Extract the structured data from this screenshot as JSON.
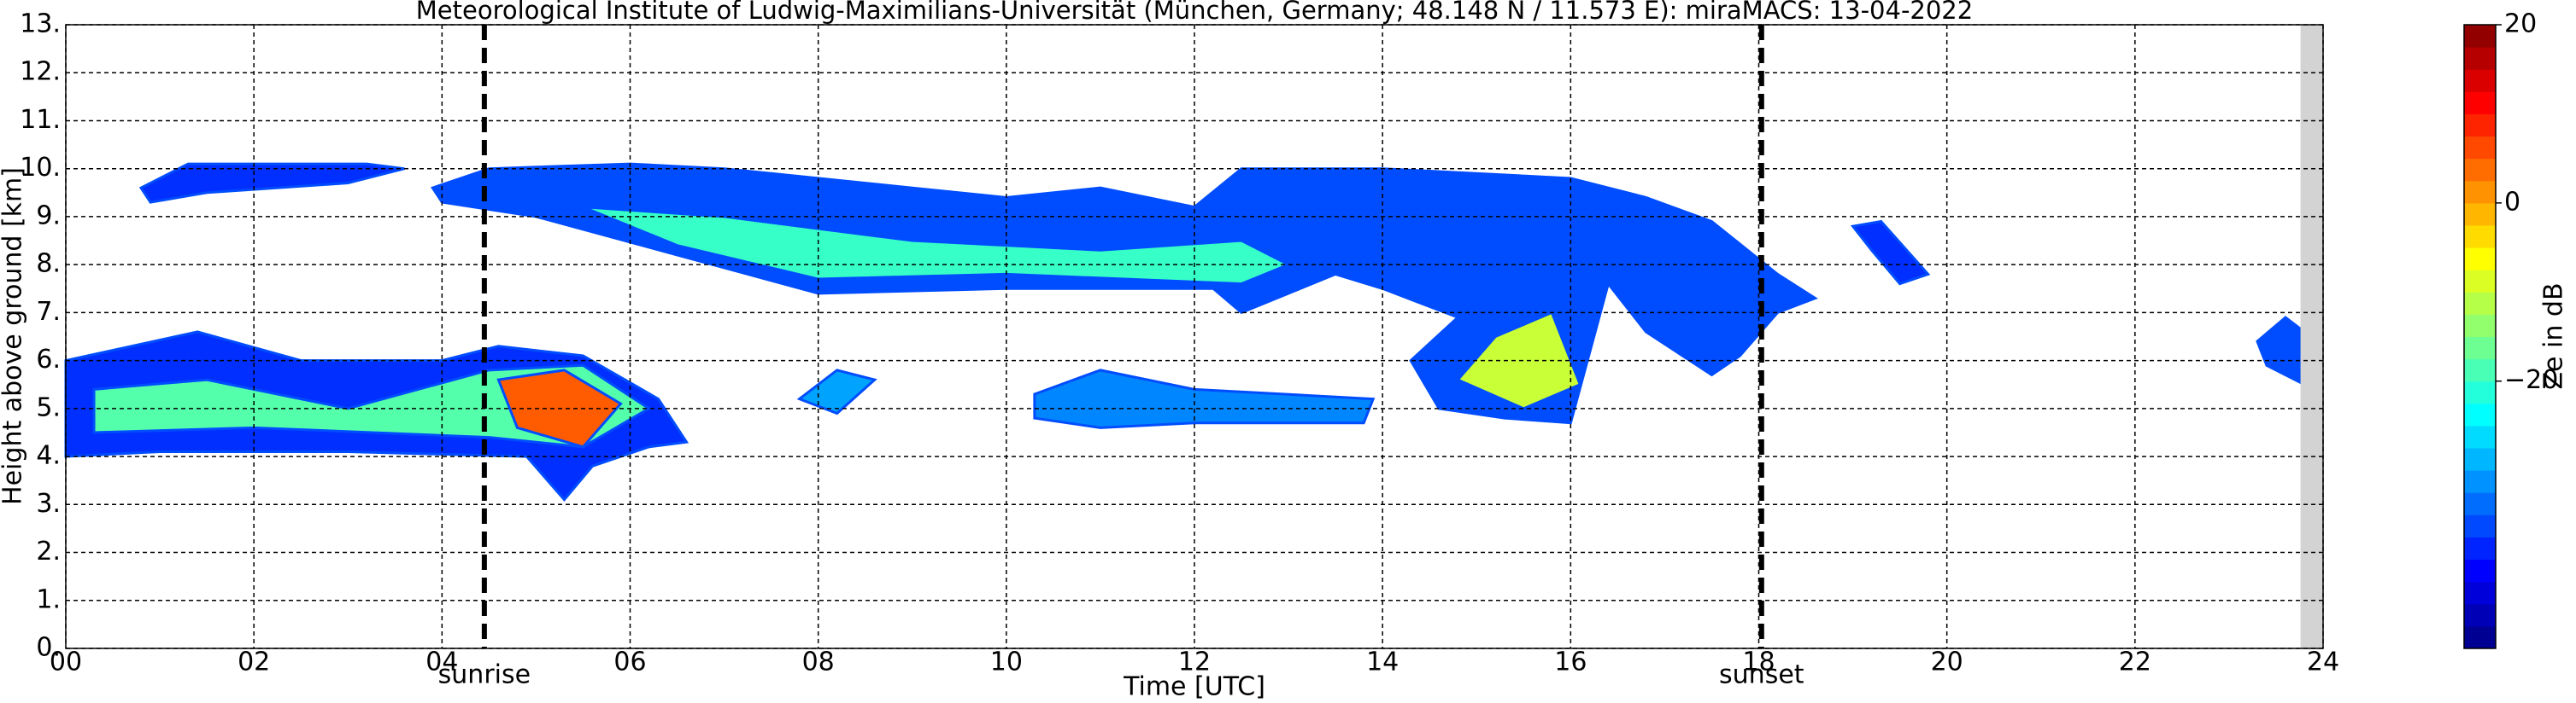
{
  "chart_data": {
    "type": "radar-cloud",
    "title": "Meteorological Institute of Ludwig-Maximilians-Universität (München, Germany; 48.148 N / 11.573 E):    miraMACS: 13-04-2022",
    "x_label": "Time [UTC]",
    "y_label": "Height above ground [km]",
    "colorbar_label": "Ze in dB",
    "colormap": "jet",
    "xlim": [
      0,
      24
    ],
    "ylim": [
      0,
      13
    ],
    "clim": [
      -50,
      20
    ],
    "grid": true,
    "xticks": [
      {
        "value": 0,
        "label": "00"
      },
      {
        "value": 2,
        "label": "02"
      },
      {
        "value": 4,
        "label": "04"
      },
      {
        "value": 6,
        "label": "06"
      },
      {
        "value": 8,
        "label": "08"
      },
      10,
      12,
      14,
      16,
      18,
      20,
      22,
      24
    ],
    "yticks": [
      {
        "value": 0,
        "label": "0."
      },
      {
        "value": 1,
        "label": "1."
      },
      {
        "value": 2,
        "label": "2."
      },
      {
        "value": 3,
        "label": "3."
      },
      {
        "value": 4,
        "label": "4."
      },
      {
        "value": 5,
        "label": "5."
      },
      {
        "value": 6,
        "label": "6."
      },
      {
        "value": 7,
        "label": "7."
      },
      {
        "value": 8,
        "label": "8."
      },
      {
        "value": 9,
        "label": "9."
      },
      {
        "value": 10,
        "label": "10."
      },
      {
        "value": 11,
        "label": "11."
      },
      {
        "value": 12,
        "label": "12."
      },
      {
        "value": 13,
        "label": "13."
      }
    ],
    "cticks": [
      20,
      0,
      {
        "value": -20,
        "label": "−20"
      }
    ],
    "nodata_from": 23.76,
    "events": [
      {
        "label": "sunrise",
        "time": 4.45
      },
      {
        "label": "sunset",
        "time": 18.03
      }
    ],
    "clouds": [
      {
        "ze": -38,
        "x": [
          0,
          1.4,
          2.5,
          4.0,
          4.6,
          5.5,
          6.3,
          6.6,
          6.2,
          5.6,
          5.3,
          4.9,
          3,
          1,
          0
        ],
        "y": [
          6.0,
          6.6,
          6.0,
          6.0,
          6.3,
          6.1,
          5.2,
          4.3,
          4.2,
          3.8,
          3.1,
          4.0,
          4.1,
          4.1,
          4.0
        ]
      },
      {
        "ze": -18,
        "x": [
          0.3,
          1.5,
          3,
          4.5,
          5.5,
          6.2,
          5.5,
          4.5,
          2,
          0.3
        ],
        "y": [
          5.4,
          5.6,
          5.0,
          5.8,
          5.9,
          5.0,
          4.2,
          4.4,
          4.6,
          4.5
        ]
      },
      {
        "ze": 5,
        "x": [
          4.6,
          5.3,
          5.9,
          5.5,
          4.8
        ],
        "y": [
          5.6,
          5.8,
          5.1,
          4.2,
          4.6
        ]
      },
      {
        "ze": -38,
        "x": [
          0.8,
          1.3,
          3.2,
          3.6,
          3.0,
          1.5,
          0.9
        ],
        "y": [
          9.6,
          10.1,
          10.1,
          10.0,
          9.7,
          9.5,
          9.3
        ]
      },
      {
        "ze": -36,
        "x": [
          3.9,
          4.5,
          6,
          7,
          9,
          10,
          11,
          12,
          12.5,
          14,
          16,
          16.8,
          17.5,
          18.2,
          18.6,
          18.2,
          17.8,
          17.5,
          16.8,
          16.4,
          16.0,
          15.3,
          14.6,
          14.3,
          14.8,
          14,
          13.5,
          12.5,
          12.2,
          10,
          8,
          6.5,
          5,
          4.0
        ],
        "y": [
          9.6,
          10.0,
          10.1,
          10.0,
          9.6,
          9.4,
          9.6,
          9.2,
          10.0,
          10.0,
          9.8,
          9.4,
          8.9,
          7.8,
          7.3,
          7.0,
          6.1,
          5.7,
          6.6,
          7.6,
          4.7,
          4.8,
          5.0,
          6.0,
          6.9,
          7.5,
          7.8,
          7.0,
          7.5,
          7.5,
          7.4,
          8.2,
          9.0,
          9.3
        ]
      },
      {
        "ze": -20,
        "x": [
          5.5,
          7,
          9,
          11,
          12.5,
          13,
          12.5,
          10,
          8,
          6.5
        ],
        "y": [
          9.2,
          9.0,
          8.5,
          8.3,
          8.5,
          8.0,
          7.6,
          7.8,
          7.7,
          8.4
        ]
      },
      {
        "ze": -10,
        "x": [
          15.2,
          15.8,
          16.1,
          15.5,
          14.8
        ],
        "y": [
          6.5,
          7.0,
          5.5,
          5.0,
          5.6
        ]
      },
      {
        "ze": -32,
        "x": [
          10.3,
          11,
          12,
          13.9,
          13.8,
          12,
          11,
          10.3
        ],
        "y": [
          5.3,
          5.8,
          5.4,
          5.2,
          4.7,
          4.7,
          4.6,
          4.8
        ]
      },
      {
        "ze": -30,
        "x": [
          7.8,
          8.2,
          8.6,
          8.2
        ],
        "y": [
          5.2,
          5.8,
          5.6,
          4.9
        ]
      },
      {
        "ze": -38,
        "x": [
          19,
          19.3,
          19.8,
          19.5,
          19.2
        ],
        "y": [
          8.8,
          8.9,
          7.8,
          7.6,
          8.3
        ]
      },
      {
        "ze": -36,
        "x": [
          23.3,
          23.6,
          23.8,
          23.8,
          23.4
        ],
        "y": [
          6.4,
          6.9,
          6.6,
          5.5,
          5.9
        ]
      }
    ]
  }
}
